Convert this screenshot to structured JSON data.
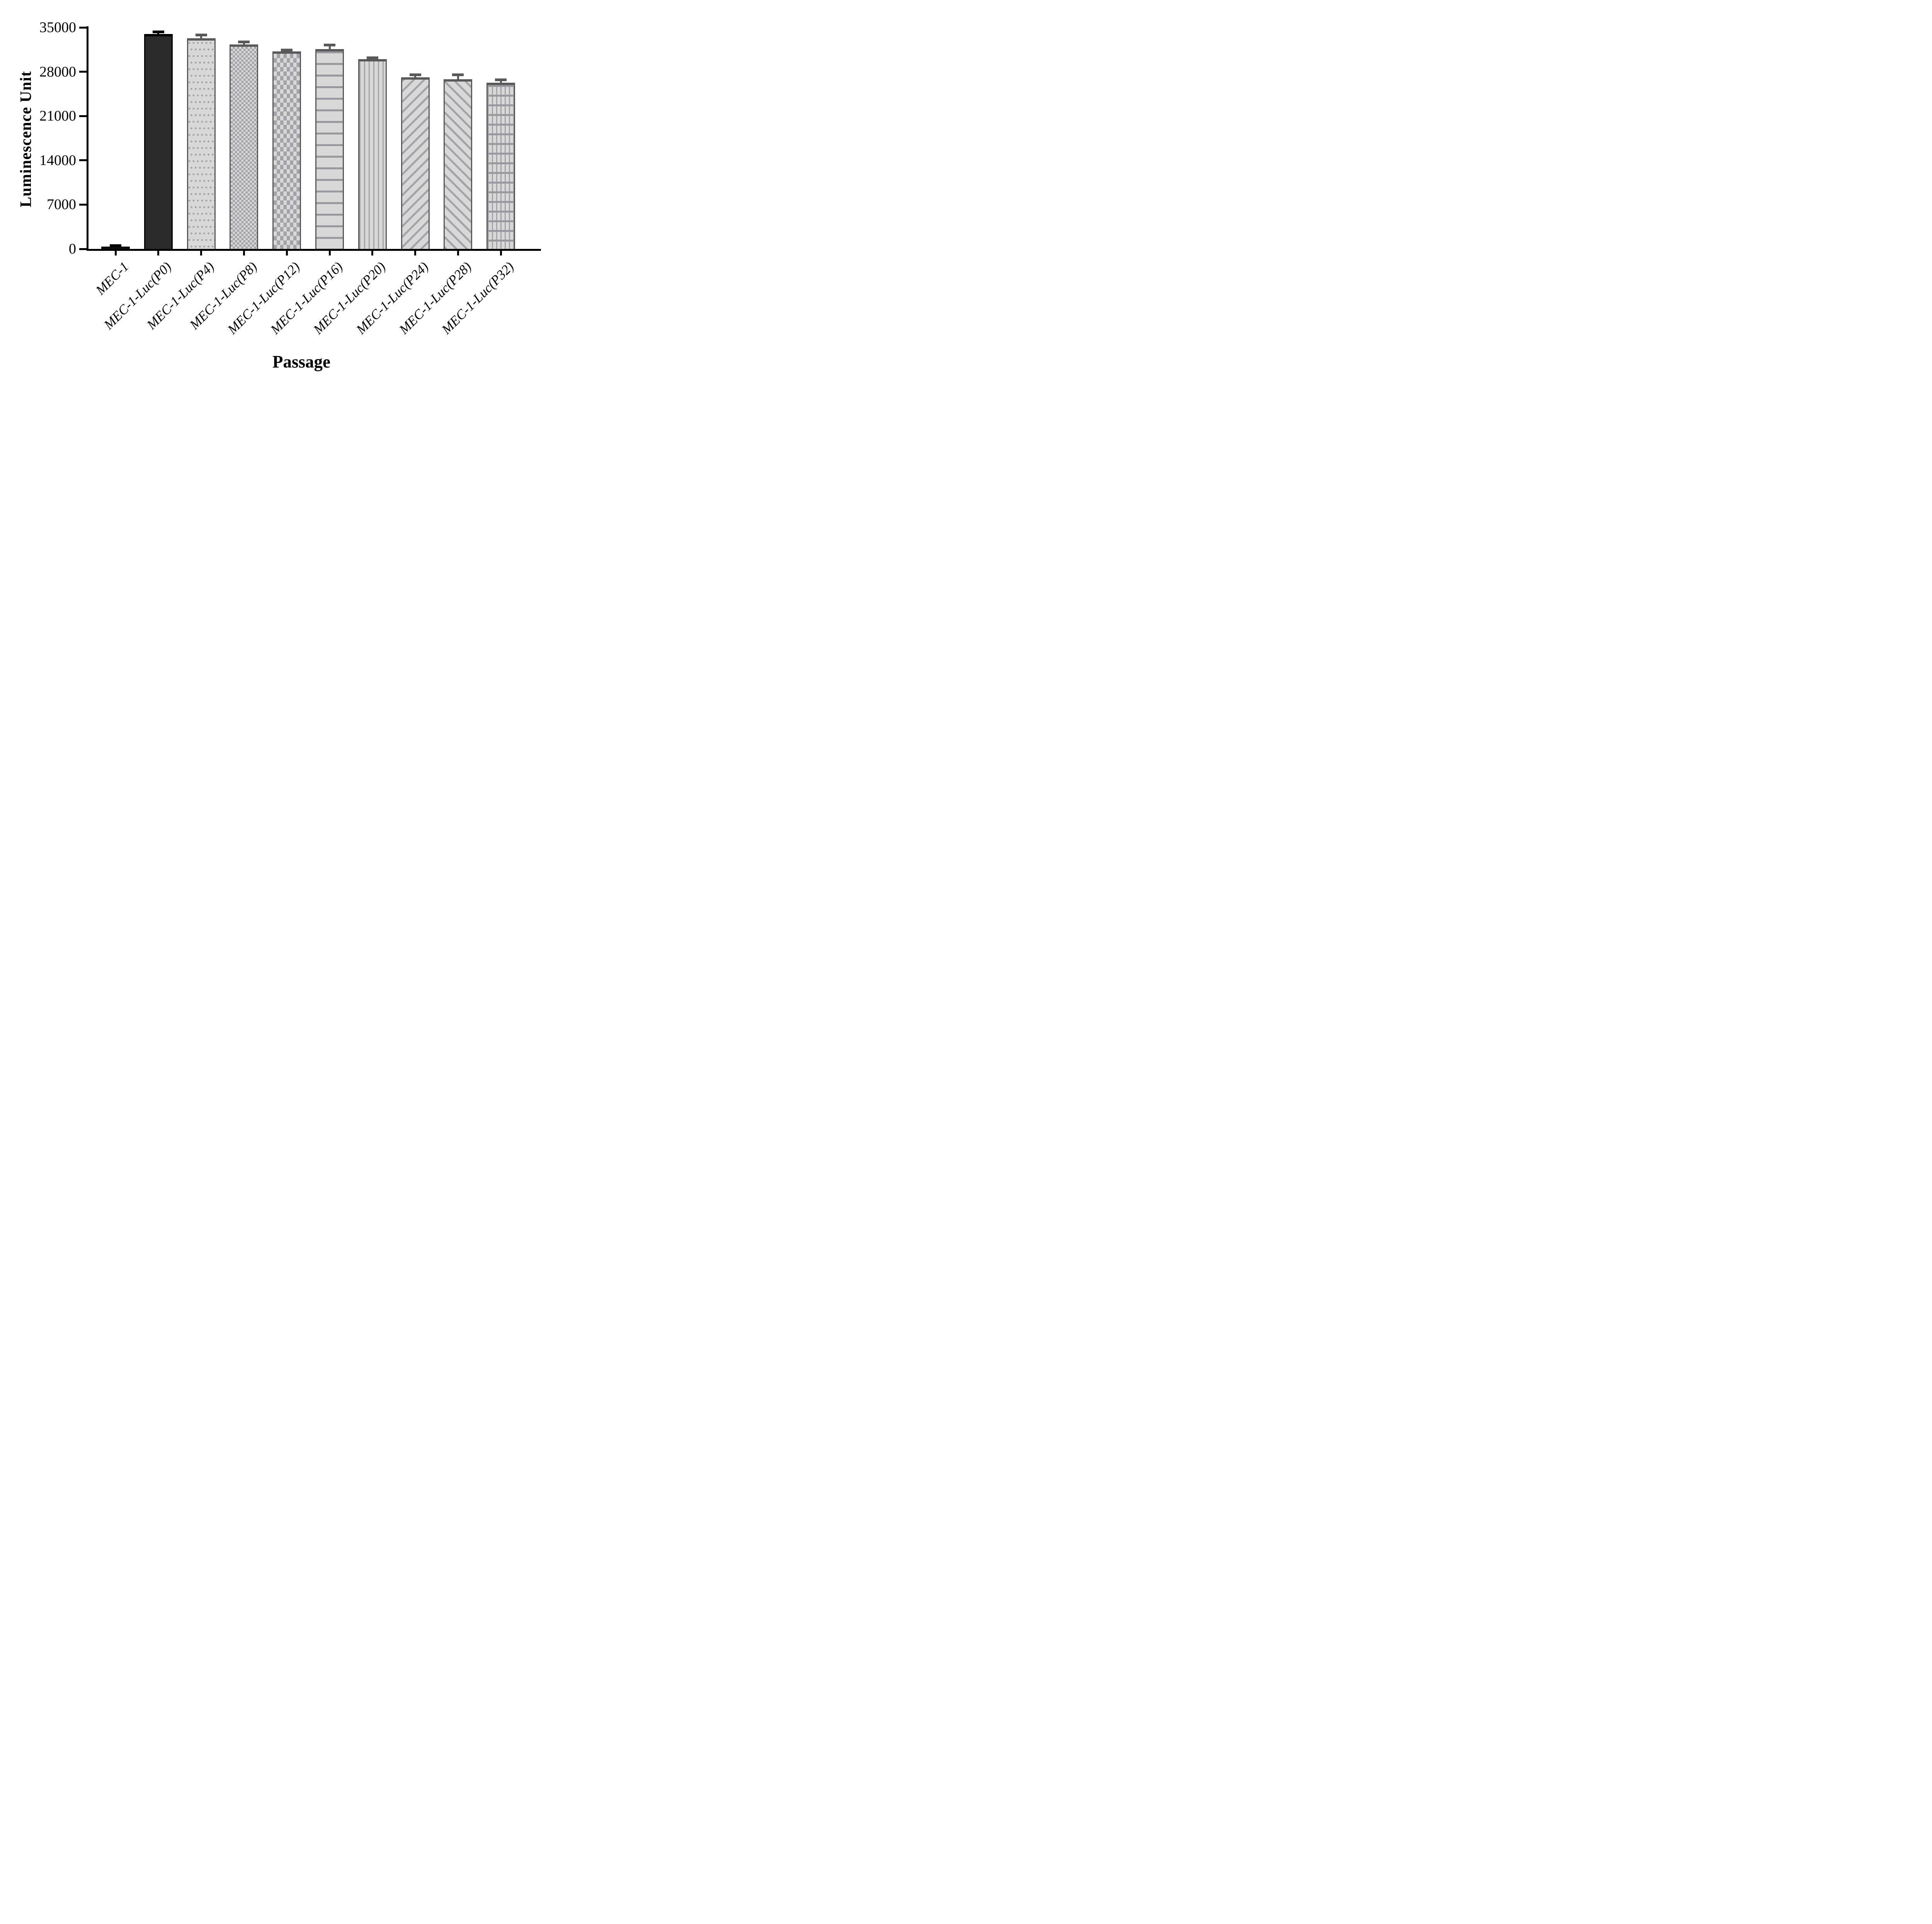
{
  "figure": {
    "background": "#ffffff",
    "colors": {
      "axis": "#000000",
      "bar_fill_light": "#d8d8d8",
      "pattern_gray": "#a2a2a8",
      "pattern_gray_dark": "#98989e",
      "bar_fill_black": "#2b2b2b",
      "bar_border_gray": "#595959",
      "bar_border_black": "#000000",
      "error_bar_gray": "#595959",
      "error_bar_black": "#000000"
    }
  },
  "chart_data": {
    "type": "bar",
    "title": "",
    "xlabel": "Passage",
    "ylabel": "Luminescence Unit",
    "ylim": [
      0,
      35000
    ],
    "yticks": [
      0,
      7000,
      14000,
      21000,
      28000,
      35000
    ],
    "grid": false,
    "legend": null,
    "categories": [
      "MEC-1",
      "MEC-1-Luc(P0)",
      "MEC-1-Luc(P4)",
      "MEC-1-Luc(P8)",
      "MEC-1-Luc(P12)",
      "MEC-1-Luc(P16)",
      "MEC-1-Luc(P20)",
      "MEC-1-Luc(P24)",
      "MEC-1-Luc(P28)",
      "MEC-1-Luc(P32)"
    ],
    "values": [
      350,
      33950,
      33300,
      32350,
      31250,
      31600,
      30000,
      27150,
      26850,
      26300
    ],
    "errors": [
      150,
      350,
      550,
      350,
      200,
      650,
      200,
      400,
      700,
      450
    ],
    "bar_styles": [
      "solid-tiny",
      "solid-black",
      "dots",
      "checker-fine",
      "checker-large",
      "hlines",
      "vlines",
      "diag-up",
      "diag-down",
      "grid"
    ]
  }
}
